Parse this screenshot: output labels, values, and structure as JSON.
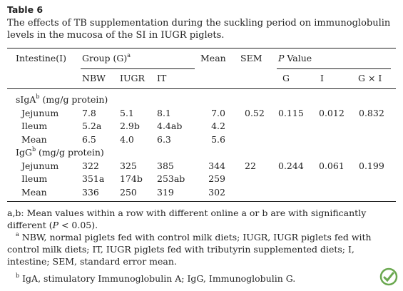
{
  "title": "Table 6",
  "caption": "The effects of TB supplementation during the suckling period on immunoglobulin levels in the mucosa of the SI in IUGR piglets.",
  "header": {
    "intestine": "Intestine(I)",
    "group": "Group (G)",
    "group_note": "a",
    "mean": "Mean",
    "sem": "SEM",
    "p_italic": "P",
    "p_text": "Value",
    "subgroups": [
      "NBW",
      "IUGR",
      "IT"
    ],
    "p_cols": [
      "G",
      "I",
      "G × I"
    ]
  },
  "sections": [
    {
      "name": "sIgA",
      "name_note": "b",
      "unit": "(mg/g protein)",
      "rows": [
        [
          "Jejunum",
          "7.8",
          "5.1",
          "8.1",
          "7.0",
          "0.52",
          "0.115",
          "0.012",
          "0.832"
        ],
        [
          "Ileum",
          "5.2a",
          "2.9b",
          "4.4ab",
          "4.2"
        ],
        [
          "Mean",
          "6.5",
          "4.0",
          "6.3",
          "5.6"
        ]
      ]
    },
    {
      "name": "IgG",
      "name_note": "b",
      "unit": "(mg/g protein)",
      "rows": [
        [
          "Jejunum",
          "322",
          "325",
          "385",
          "344",
          "22",
          "0.244",
          "0.061",
          "0.199"
        ],
        [
          "Ileum",
          "351a",
          "174b",
          "253ab",
          "259"
        ],
        [
          "Mean",
          "336",
          "250",
          "319",
          "302"
        ]
      ]
    }
  ],
  "notes": {
    "main": {
      "before": "a,b: Mean values within a row with different online a or b are with significantly different (",
      "italic": "P",
      "after": " < 0.05)."
    },
    "a": {
      "mark": "a",
      "text": "NBW, normal piglets fed with control milk diets; IUGR, IUGR piglets fed with control milk diets; IT, IUGR piglets fed with tributyrin supplemented diets; I, intestine; SEM, standard error mean."
    },
    "b": {
      "mark": "b",
      "text": "IgA, stimulatory Immunoglobulin A; IgG, Immunoglobulin G."
    }
  }
}
